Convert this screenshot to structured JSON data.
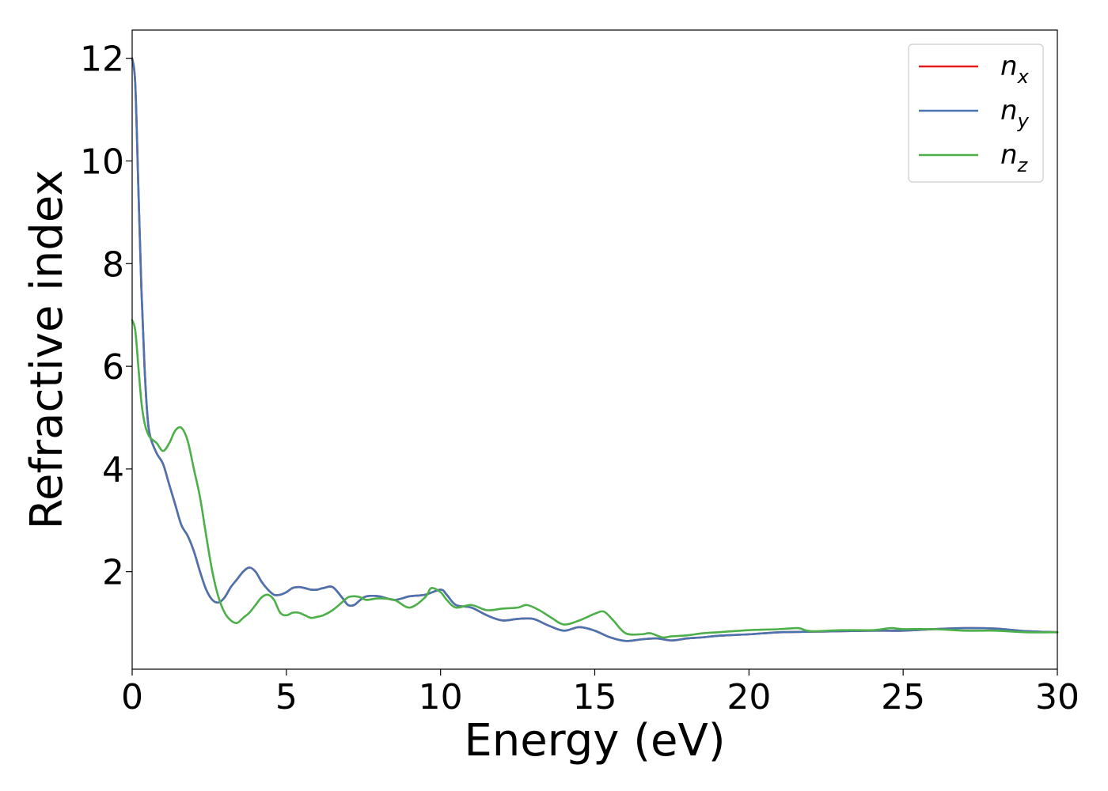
{
  "chart_data": {
    "type": "line",
    "xlabel": "Energy (eV)",
    "ylabel": "Refractive index",
    "xlim": [
      0,
      30
    ],
    "ylim": [
      0.1,
      12.55
    ],
    "xticks": [
      0,
      5,
      10,
      15,
      20,
      25,
      30
    ],
    "yticks": [
      2,
      4,
      6,
      8,
      10,
      12
    ],
    "grid": false,
    "legend_position": "top-right",
    "series": [
      {
        "name": "n_x",
        "label_base": "n",
        "label_sub": "x",
        "color": "#e41a1c",
        "x": [
          0,
          0.1,
          0.2,
          0.3,
          0.4,
          0.5,
          0.6,
          0.8,
          1.0,
          1.2,
          1.4,
          1.6,
          1.8,
          2.0,
          2.2,
          2.4,
          2.6,
          2.8,
          3.0,
          3.2,
          3.4,
          3.6,
          3.8,
          4.0,
          4.2,
          4.4,
          4.6,
          4.8,
          5.0,
          5.2,
          5.4,
          5.6,
          5.8,
          6.0,
          6.2,
          6.5,
          6.8,
          7.0,
          7.2,
          7.4,
          7.6,
          8.0,
          8.5,
          9.0,
          9.5,
          10.0,
          10.2,
          10.5,
          11.0,
          11.5,
          12.0,
          12.5,
          13.0,
          13.5,
          14.0,
          14.5,
          15.0,
          15.5,
          16.0,
          16.5,
          17.0,
          17.5,
          18.0,
          18.5,
          19.0,
          20.0,
          21.0,
          22.0,
          23.0,
          24.0,
          25.0,
          26.0,
          27.0,
          28.0,
          29.0,
          30.0
        ],
        "y": [
          12.0,
          11.5,
          9.5,
          7.5,
          6.0,
          5.0,
          4.6,
          4.3,
          4.1,
          3.7,
          3.3,
          2.9,
          2.7,
          2.4,
          2.0,
          1.65,
          1.45,
          1.4,
          1.5,
          1.7,
          1.85,
          2.0,
          2.08,
          2.0,
          1.8,
          1.65,
          1.55,
          1.55,
          1.6,
          1.68,
          1.7,
          1.68,
          1.65,
          1.65,
          1.68,
          1.7,
          1.5,
          1.35,
          1.35,
          1.45,
          1.52,
          1.52,
          1.45,
          1.52,
          1.55,
          1.65,
          1.55,
          1.35,
          1.3,
          1.15,
          1.05,
          1.08,
          1.08,
          0.95,
          0.85,
          0.92,
          0.85,
          0.72,
          0.65,
          0.68,
          0.7,
          0.66,
          0.7,
          0.72,
          0.75,
          0.78,
          0.82,
          0.83,
          0.84,
          0.85,
          0.85,
          0.88,
          0.9,
          0.89,
          0.84,
          0.82
        ]
      },
      {
        "name": "n_y",
        "label_base": "n",
        "label_sub": "y",
        "color": "#4a74b0",
        "x": [
          0,
          0.1,
          0.2,
          0.3,
          0.4,
          0.5,
          0.6,
          0.8,
          1.0,
          1.2,
          1.4,
          1.6,
          1.8,
          2.0,
          2.2,
          2.4,
          2.6,
          2.8,
          3.0,
          3.2,
          3.4,
          3.6,
          3.8,
          4.0,
          4.2,
          4.4,
          4.6,
          4.8,
          5.0,
          5.2,
          5.4,
          5.6,
          5.8,
          6.0,
          6.2,
          6.5,
          6.8,
          7.0,
          7.2,
          7.4,
          7.6,
          8.0,
          8.5,
          9.0,
          9.5,
          10.0,
          10.2,
          10.5,
          11.0,
          11.5,
          12.0,
          12.5,
          13.0,
          13.5,
          14.0,
          14.5,
          15.0,
          15.5,
          16.0,
          16.5,
          17.0,
          17.5,
          18.0,
          18.5,
          19.0,
          20.0,
          21.0,
          22.0,
          23.0,
          24.0,
          25.0,
          26.0,
          27.0,
          28.0,
          29.0,
          30.0
        ],
        "y": [
          12.0,
          11.5,
          9.5,
          7.5,
          6.0,
          5.0,
          4.6,
          4.3,
          4.1,
          3.7,
          3.3,
          2.9,
          2.7,
          2.4,
          2.0,
          1.65,
          1.45,
          1.4,
          1.5,
          1.7,
          1.85,
          2.0,
          2.08,
          2.0,
          1.8,
          1.65,
          1.55,
          1.55,
          1.6,
          1.68,
          1.7,
          1.68,
          1.65,
          1.65,
          1.68,
          1.7,
          1.5,
          1.35,
          1.35,
          1.45,
          1.52,
          1.52,
          1.45,
          1.52,
          1.55,
          1.65,
          1.55,
          1.35,
          1.3,
          1.15,
          1.05,
          1.08,
          1.08,
          0.95,
          0.85,
          0.92,
          0.85,
          0.72,
          0.65,
          0.68,
          0.7,
          0.66,
          0.7,
          0.72,
          0.75,
          0.78,
          0.82,
          0.83,
          0.84,
          0.85,
          0.85,
          0.88,
          0.9,
          0.89,
          0.84,
          0.82
        ]
      },
      {
        "name": "n_z",
        "label_base": "n",
        "label_sub": "z",
        "color": "#4daf4a",
        "x": [
          0,
          0.1,
          0.2,
          0.3,
          0.4,
          0.5,
          0.6,
          0.8,
          1.0,
          1.2,
          1.4,
          1.6,
          1.8,
          2.0,
          2.2,
          2.4,
          2.6,
          2.8,
          3.0,
          3.2,
          3.4,
          3.6,
          3.8,
          4.0,
          4.2,
          4.4,
          4.6,
          4.8,
          5.0,
          5.2,
          5.4,
          5.6,
          5.8,
          6.0,
          6.2,
          6.5,
          6.8,
          7.0,
          7.2,
          7.4,
          7.6,
          8.0,
          8.5,
          9.0,
          9.5,
          9.7,
          10.0,
          10.2,
          10.5,
          11.0,
          11.5,
          12.0,
          12.5,
          12.8,
          13.2,
          13.6,
          14.0,
          14.5,
          15.0,
          15.3,
          15.6,
          16.0,
          16.5,
          16.8,
          17.2,
          17.5,
          18.0,
          18.5,
          19.0,
          20.0,
          21.0,
          21.6,
          22.0,
          23.0,
          24.0,
          24.6,
          25.0,
          26.0,
          27.0,
          28.0,
          29.0,
          30.0
        ],
        "y": [
          6.9,
          6.7,
          6.0,
          5.3,
          4.9,
          4.7,
          4.6,
          4.5,
          4.35,
          4.5,
          4.75,
          4.8,
          4.55,
          4.0,
          3.45,
          2.7,
          2.0,
          1.5,
          1.2,
          1.05,
          1.0,
          1.1,
          1.2,
          1.35,
          1.5,
          1.55,
          1.45,
          1.2,
          1.15,
          1.2,
          1.2,
          1.15,
          1.1,
          1.12,
          1.15,
          1.25,
          1.4,
          1.5,
          1.52,
          1.5,
          1.45,
          1.48,
          1.45,
          1.3,
          1.5,
          1.68,
          1.6,
          1.45,
          1.3,
          1.35,
          1.25,
          1.28,
          1.3,
          1.35,
          1.25,
          1.1,
          0.97,
          1.05,
          1.18,
          1.22,
          1.05,
          0.8,
          0.78,
          0.8,
          0.72,
          0.74,
          0.76,
          0.8,
          0.82,
          0.86,
          0.88,
          0.9,
          0.84,
          0.86,
          0.86,
          0.9,
          0.88,
          0.88,
          0.85,
          0.85,
          0.82,
          0.82
        ]
      }
    ]
  }
}
